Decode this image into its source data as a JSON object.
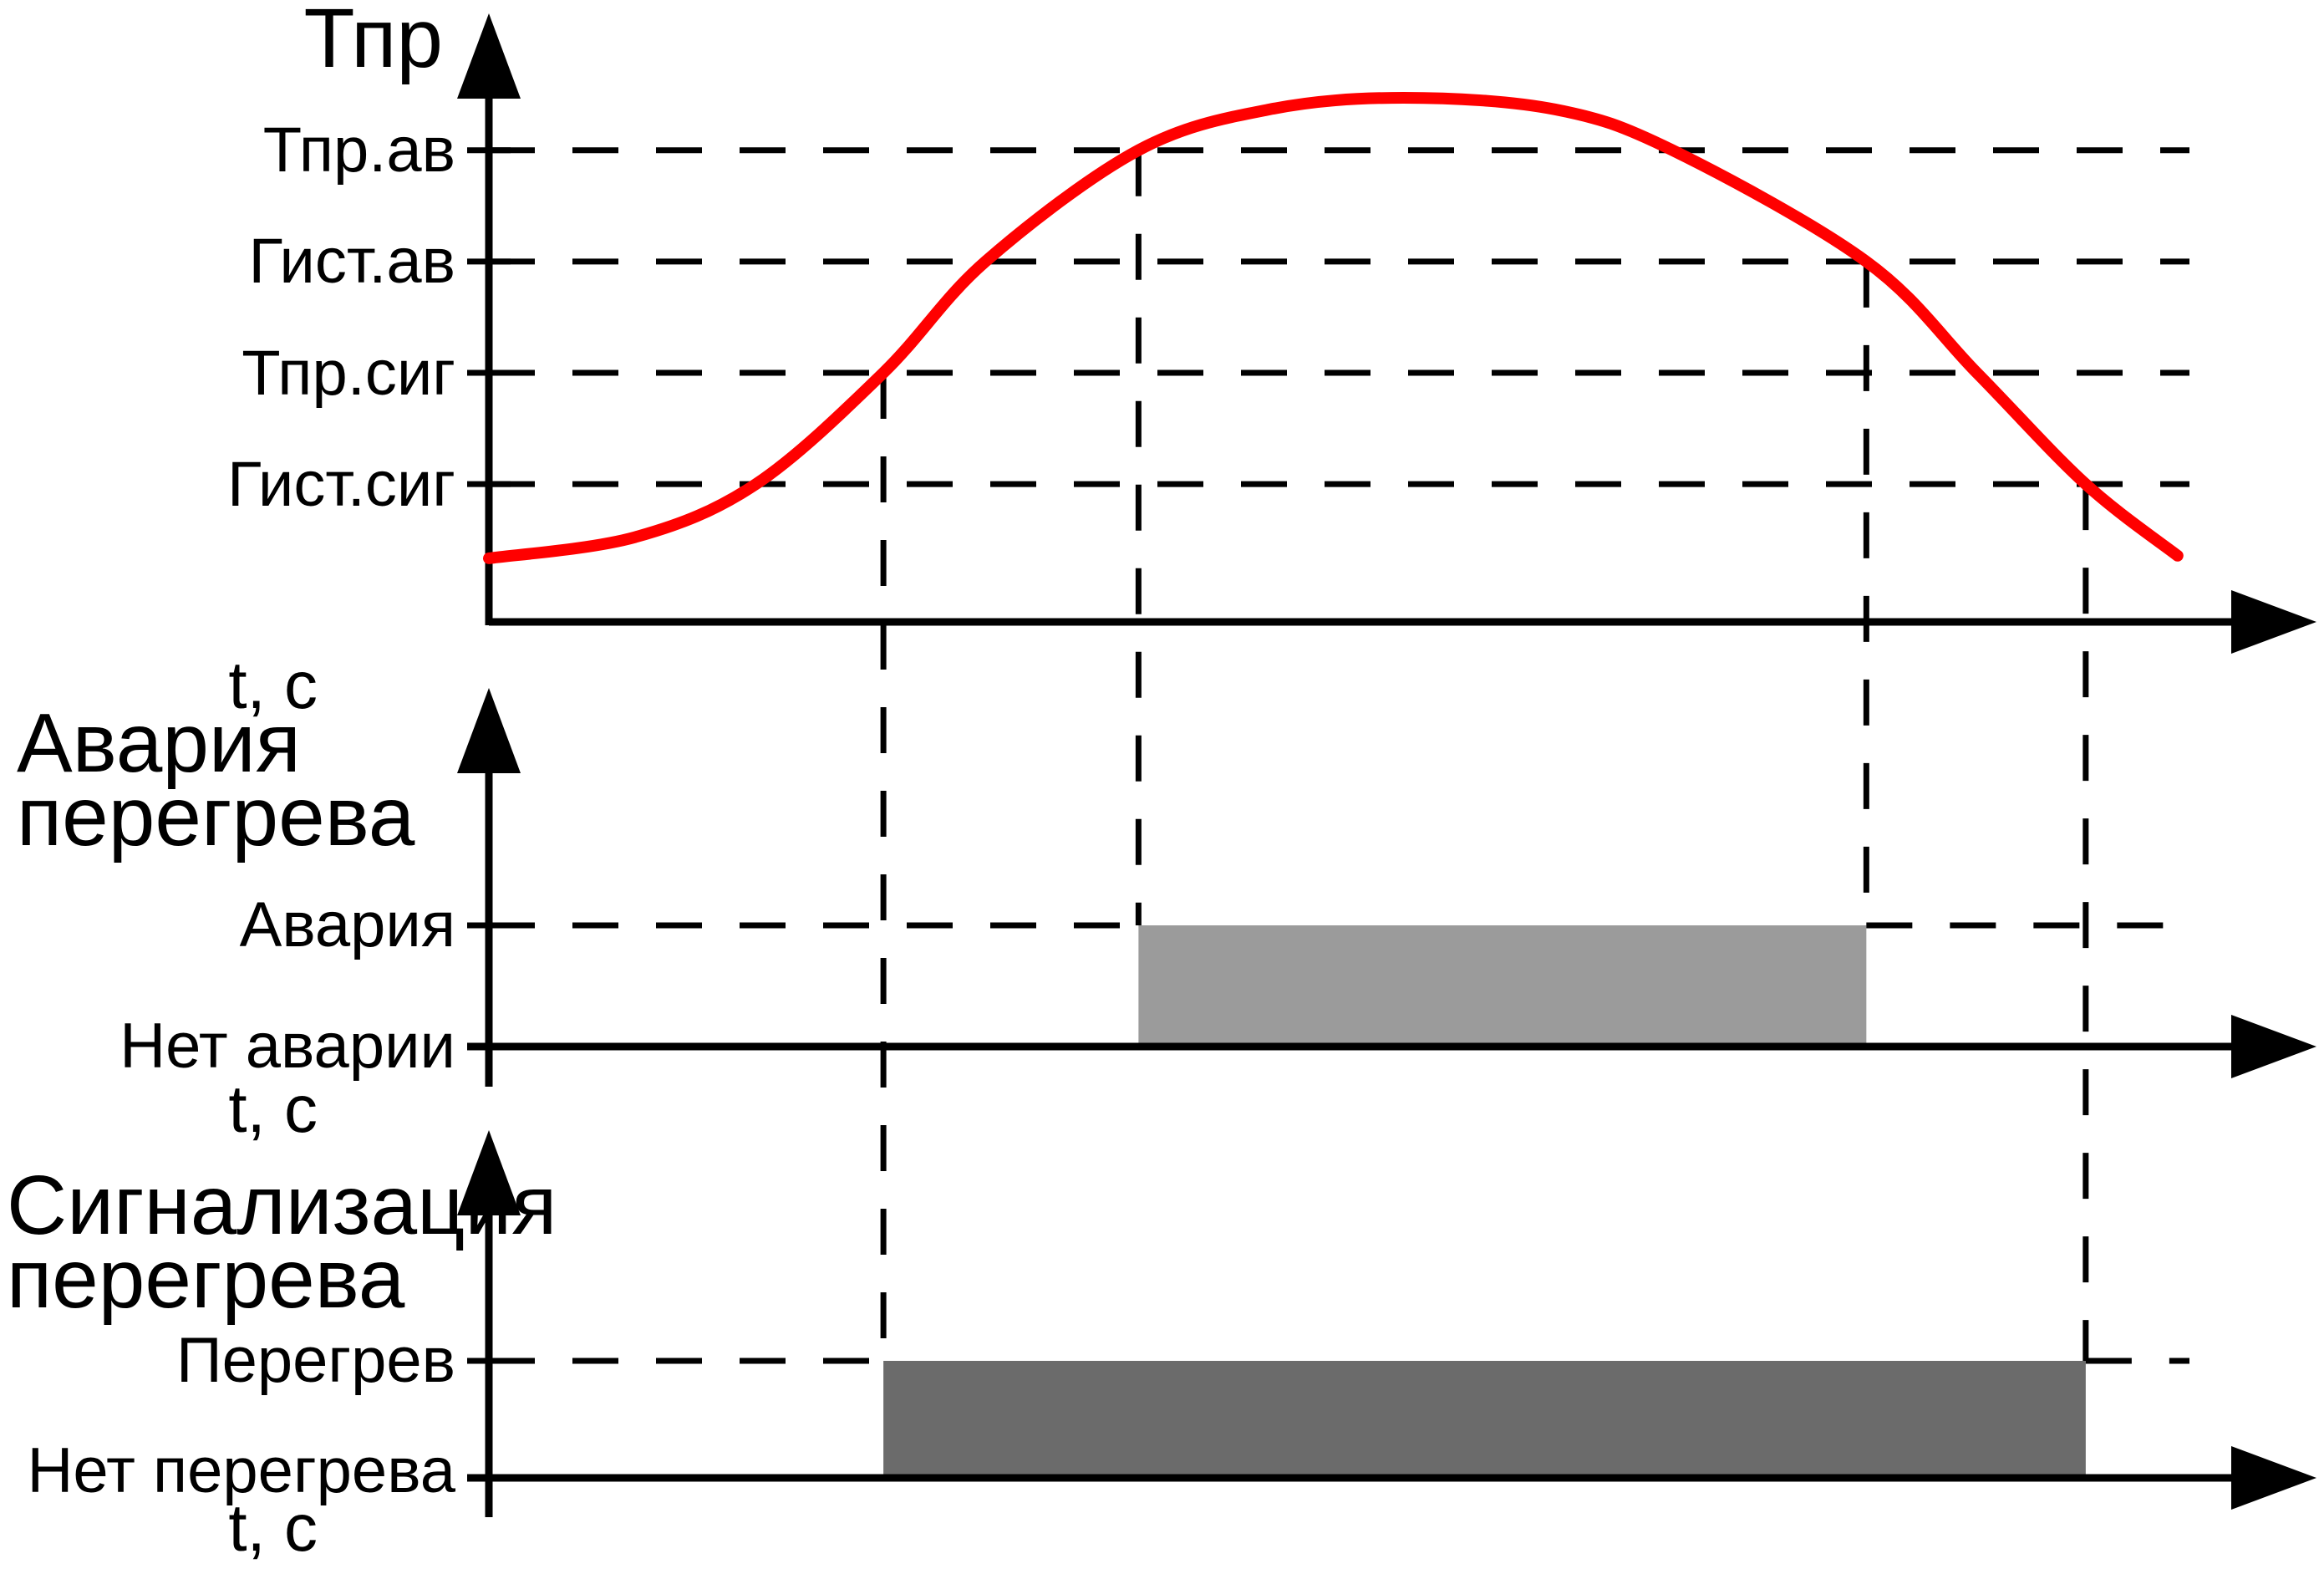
{
  "page": {
    "background": "#ffffff",
    "ink": "#000000"
  },
  "labels": {
    "top_y_title": "Тпр",
    "level_tpr_av": "Тпр.ав",
    "level_gist_av": "Гист.ав",
    "level_tpr_sig": "Тпр.сиг",
    "level_gist_sig": "Гист.сиг",
    "time_axis": "t, с",
    "alarm_title_line1": "Авария",
    "alarm_title_line2": "перегрева",
    "alarm_on": "Авария",
    "alarm_off": "Нет аварии",
    "signal_title_line1": "Сигнализация",
    "signal_title_line2": "перегрева",
    "signal_on": "Перегрев",
    "signal_off": "Нет перегрева"
  },
  "chart_data": [
    {
      "type": "line",
      "title": "Тпр",
      "xlabel": "t, с",
      "ylabel": "Тпр",
      "x_range": [
        0,
        100
      ],
      "y_range": [
        0,
        100
      ],
      "grid": false,
      "curve_color": "#ff0000",
      "series": [
        {
          "name": "Тпр(t)",
          "x": [
            0,
            8.6,
            15.7,
            23.2,
            29.2,
            38.2,
            45.9,
            53.8,
            62.7,
            69.6,
            81.0,
            87.5,
            93.9,
            99.3
          ],
          "y": [
            12,
            16,
            26,
            47,
            68,
            89,
            96.7,
            98.9,
            96.7,
            89,
            68,
            47,
            26,
            12.5
          ]
        }
      ],
      "levels": [
        {
          "label": "Тпр.ав",
          "value": 89
        },
        {
          "label": "Гист.ав",
          "value": 68
        },
        {
          "label": "Тпр.сиг",
          "value": 47
        },
        {
          "label": "Гист.сиг",
          "value": 26
        }
      ],
      "event_times": {
        "signal_on": 23.2,
        "alarm_on": 38.2,
        "alarm_off": 81.0,
        "signal_off": 93.9
      }
    },
    {
      "type": "step",
      "title": "Авария перегрева",
      "xlabel": "t, с",
      "categories": [
        "Нет аварии",
        "Авария"
      ],
      "on_interval": [
        38.2,
        81.0
      ],
      "fill": "#9b9b9b"
    },
    {
      "type": "step",
      "title": "Сигнализация перегрева",
      "xlabel": "t, с",
      "categories": [
        "Нет перегрева",
        "Перегрев"
      ],
      "on_interval": [
        23.2,
        93.9
      ],
      "fill": "#6b6b6b"
    }
  ]
}
